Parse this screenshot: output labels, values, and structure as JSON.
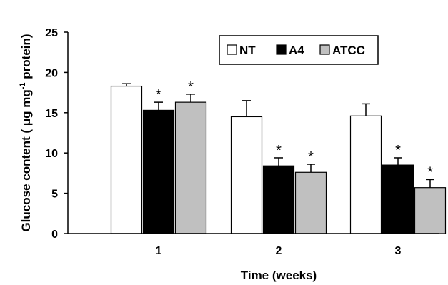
{
  "chart_data": {
    "type": "bar",
    "categories": [
      "1",
      "2",
      "3"
    ],
    "xlabel": "Time (weeks)",
    "ylabel_parts": [
      "Glucose content  ( μg mg",
      "-1",
      " protein)"
    ],
    "ylim": [
      0,
      25
    ],
    "yticks": [
      "0",
      "5",
      "10",
      "15",
      "20",
      "25"
    ],
    "grid": false,
    "legend_placement": "top-right",
    "series": [
      {
        "name": "NT",
        "color": "#ffffff",
        "values": [
          18.3,
          14.5,
          14.6
        ],
        "errors": [
          0.3,
          2.0,
          1.5
        ],
        "significant": [
          false,
          false,
          false
        ]
      },
      {
        "name": "A4",
        "color": "#000000",
        "values": [
          15.3,
          8.4,
          8.5
        ],
        "errors": [
          1.0,
          1.0,
          0.9
        ],
        "significant": [
          true,
          true,
          true
        ]
      },
      {
        "name": "ATCC",
        "color": "#c0c0c0",
        "values": [
          16.3,
          7.6,
          5.7
        ],
        "errors": [
          1.0,
          1.0,
          1.0
        ],
        "significant": [
          true,
          true,
          true
        ]
      }
    ],
    "significance_marker": "*"
  }
}
